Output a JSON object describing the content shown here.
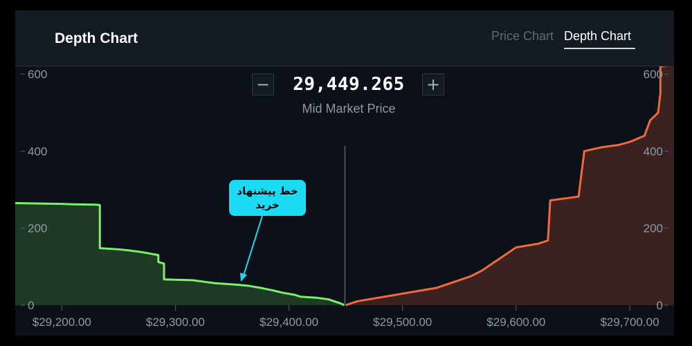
{
  "header": {
    "title": "Depth Chart",
    "tabs": [
      {
        "label": "Price Chart",
        "active": false
      },
      {
        "label": "Depth Chart",
        "active": true
      }
    ]
  },
  "mid_market": {
    "price": "29,449.265",
    "label": "Mid Market Price",
    "minus_label": "−",
    "plus_label": "+"
  },
  "annotation": {
    "text": "خط پیشنهاد\nخرید"
  },
  "colors": {
    "bid_line": "#7cf06a",
    "bid_fill": "#1f3a25",
    "ask_line": "#f26a3a",
    "ask_fill": "#3a2220",
    "mid_line": "#4a5059",
    "callout": "#1bdbf4",
    "axis_text": "#8f98a3"
  },
  "chart_data": {
    "type": "area",
    "title": "",
    "xlabel": "",
    "ylabel": "",
    "xlim": [
      29159,
      29739
    ],
    "ylim": [
      0,
      620
    ],
    "x_ticks": [
      29200,
      29300,
      29400,
      29500,
      29600,
      29700
    ],
    "x_tick_labels": [
      "$29,200.00",
      "$29,300.00",
      "$29,400.00",
      "$29,500.00",
      "$29,600.00",
      "$29,700.00"
    ],
    "y_ticks": [
      0,
      200,
      400,
      600
    ],
    "y_tick_labels": [
      "0",
      "200",
      "400",
      "600"
    ],
    "mid_price": 29449.265,
    "series": [
      {
        "side": "bid",
        "x": [
          29159,
          29180,
          29200,
          29210,
          29230,
          29233.5,
          29233.5,
          29250,
          29260,
          29270,
          29285,
          29285,
          29290,
          29290,
          29300,
          29315,
          29325,
          29335,
          29355,
          29365,
          29375,
          29385,
          29395,
          29405,
          29410,
          29425,
          29435,
          29440,
          29445,
          29449
        ],
        "y": [
          265,
          264,
          263,
          262,
          261,
          260,
          148,
          145,
          142,
          138,
          130,
          112,
          108,
          67,
          66,
          65,
          61,
          57,
          53,
          50,
          45,
          39,
          32,
          27,
          22,
          19,
          15,
          10,
          5,
          0
        ]
      },
      {
        "side": "ask",
        "x": [
          29450,
          29455,
          29460,
          29470,
          29480,
          29490,
          29500,
          29510,
          29520,
          29530,
          29540,
          29550,
          29560,
          29570,
          29580,
          29585,
          29590,
          29600,
          29620,
          29628,
          29630,
          29650,
          29655,
          29660,
          29675,
          29690,
          29700,
          29705,
          29713,
          29718,
          29725,
          29727,
          29727,
          29739
        ],
        "y": [
          0,
          5,
          10,
          15,
          20,
          25,
          30,
          35,
          40,
          45,
          55,
          65,
          75,
          90,
          110,
          120,
          130,
          150,
          160,
          168,
          272,
          280,
          282,
          400,
          410,
          416,
          424,
          430,
          440,
          480,
          500,
          550,
          620,
          625
        ]
      }
    ],
    "grid": false,
    "legend": "none"
  }
}
